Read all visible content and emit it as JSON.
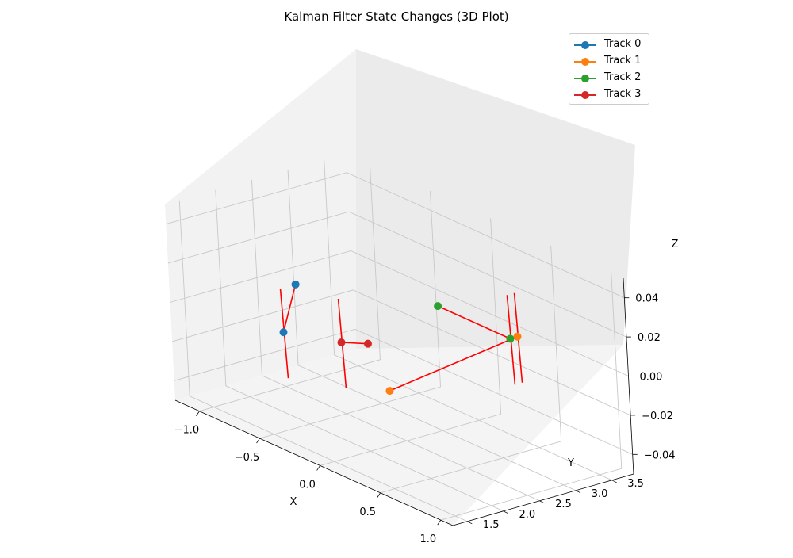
{
  "chart_data": {
    "type": "scatter",
    "projection": "3d",
    "title": "Kalman Filter State Changes (3D Plot)",
    "xlabel": "X",
    "ylabel": "Y",
    "zlabel": "Z",
    "xlim": [
      -1.2,
      1.1
    ],
    "ylim": [
      1.3,
      3.8
    ],
    "zlim": [
      -0.05,
      0.05
    ],
    "x_ticks": [
      "−1.0",
      "−0.5",
      "0.0",
      "0.5",
      "1.0"
    ],
    "y_ticks": [
      "1.5",
      "2.0",
      "2.5",
      "3.0",
      "3.5"
    ],
    "z_ticks": [
      "−0.04",
      "−0.02",
      "0.00",
      "0.02",
      "0.04"
    ],
    "grid": true,
    "legend_position": "top-right",
    "series": [
      {
        "name": "Track 0",
        "color": "#1f77b4",
        "points": [
          [
            -1.0,
            2.7,
            0.0
          ],
          [
            -0.5,
            1.7,
            0.0
          ]
        ]
      },
      {
        "name": "Track 1",
        "color": "#ff7f0e",
        "points": [
          [
            0.5,
            1.5,
            0.0
          ],
          [
            0.3,
            3.6,
            0.0
          ]
        ]
      },
      {
        "name": "Track 2",
        "color": "#2ca02c",
        "points": [
          [
            -0.3,
            3.5,
            0.0
          ],
          [
            0.3,
            3.5,
            0.0
          ]
        ]
      },
      {
        "name": "Track 3",
        "color": "#d62728",
        "points": [
          [
            -0.1,
            2.2,
            0.0
          ],
          [
            -0.2,
            2.0,
            0.0
          ]
        ]
      }
    ],
    "update_color": "#ff0000"
  }
}
